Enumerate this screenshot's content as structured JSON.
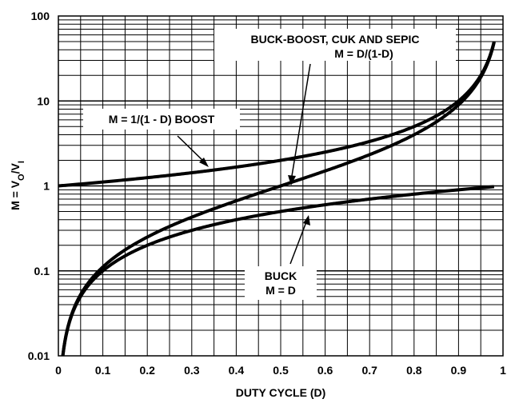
{
  "chart_data": {
    "type": "line",
    "xlabel": "DUTY CYCLE (D)",
    "ylabel_main": "M = V",
    "ylabel_sub_o": "O",
    "ylabel_slash": "/V",
    "ylabel_sub_i": "I",
    "xlim": [
      0,
      1
    ],
    "ylim": [
      0.01,
      100
    ],
    "yscale": "log",
    "grid": true,
    "x_ticks": [
      "0",
      "0.1",
      "0.2",
      "0.3",
      "0.4",
      "0.5",
      "0.6",
      "0.7",
      "0.8",
      "0.9",
      "1"
    ],
    "y_ticks": [
      "0.01",
      "0.1",
      "1",
      "10",
      "100"
    ],
    "series": [
      {
        "formula": "M = D",
        "x": [
          0.01,
          0.05,
          0.1,
          0.2,
          0.3,
          0.4,
          0.5,
          0.6,
          0.7,
          0.8,
          0.9,
          0.98
        ],
        "y": [
          0.01,
          0.05,
          0.1,
          0.2,
          0.3,
          0.4,
          0.5,
          0.6,
          0.7,
          0.8,
          0.9,
          0.98
        ]
      },
      {
        "formula": "M = 1/(1 - D)",
        "x": [
          0,
          0.1,
          0.2,
          0.3,
          0.4,
          0.5,
          0.6,
          0.7,
          0.8,
          0.9,
          0.95,
          0.98
        ],
        "y": [
          1.0,
          1.11,
          1.25,
          1.43,
          1.67,
          2.0,
          2.5,
          3.33,
          5.0,
          10.0,
          20.0,
          50.0
        ]
      },
      {
        "formula": "M = D/(1-D)",
        "x": [
          0.01,
          0.05,
          0.1,
          0.2,
          0.3,
          0.4,
          0.5,
          0.6,
          0.7,
          0.8,
          0.9,
          0.95,
          0.98
        ],
        "y": [
          0.0101,
          0.0526,
          0.111,
          0.25,
          0.429,
          0.667,
          1.0,
          1.5,
          2.33,
          4.0,
          9.0,
          19.0,
          49.0
        ]
      }
    ],
    "annotations": [
      {
        "lines": [
          "BUCK-BOOST, CUK AND SEPIC",
          "M = D/(1-D)"
        ]
      },
      {
        "lines": [
          "M = 1/(1 - D) BOOST"
        ]
      },
      {
        "lines": [
          "BUCK",
          "M = D"
        ]
      }
    ]
  }
}
